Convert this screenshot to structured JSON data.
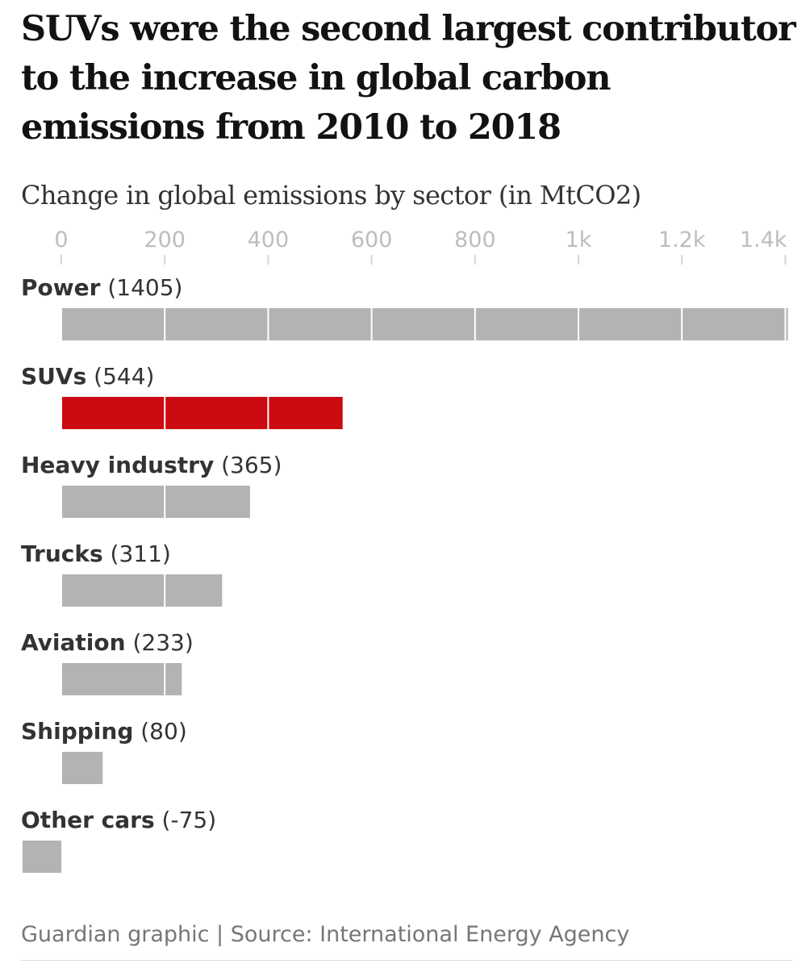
{
  "title": "SUVs were the second largest contributor to the increase in global carbon emissions from 2010 to 2018",
  "subtitle": "Change in global emissions by sector (in MtCO2)",
  "source": "Guardian graphic | Source: International Energy Agency",
  "colors": {
    "highlight": "#cc0a11",
    "bar": "#b3b3b3",
    "tick_text": "#bdbdbd",
    "label": "#333333",
    "gridline": "#ffffff"
  },
  "chart_data": {
    "type": "bar",
    "orientation": "horizontal",
    "title": "SUVs were the second largest contributor to the increase in global carbon emissions from 2010 to 2018",
    "subtitle": "Change in global emissions by sector (in MtCO2)",
    "categories": [
      "Power",
      "SUVs",
      "Heavy industry",
      "Trucks",
      "Aviation",
      "Shipping",
      "Other cars"
    ],
    "values": [
      1405,
      544,
      365,
      311,
      233,
      80,
      -75
    ],
    "value_labels": [
      "(1405)",
      "(544)",
      "(365)",
      "(311)",
      "(233)",
      "(80)",
      "(-75)"
    ],
    "highlight": "SUVs",
    "xlim": [
      -75,
      1405
    ],
    "ticks": [
      0,
      200,
      400,
      600,
      800,
      1000,
      1200,
      1400
    ],
    "tick_labels": [
      "0",
      "200",
      "400",
      "600",
      "800",
      "1k",
      "1.2k",
      "1.4k"
    ],
    "axis_position": "top",
    "grid": true,
    "legend": "none"
  }
}
